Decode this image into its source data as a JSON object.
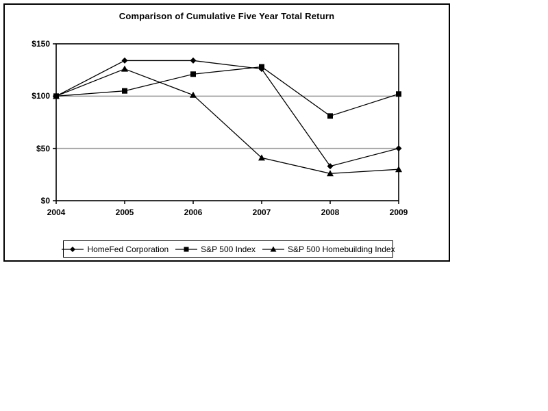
{
  "figure": {
    "title": "Comparison of Cumulative Five Year Total Return"
  },
  "chart_data": {
    "type": "line",
    "title": "Comparison of Cumulative Five Year Total Return",
    "categories": [
      "2004",
      "2005",
      "2006",
      "2007",
      "2008",
      "2009"
    ],
    "series": [
      {
        "name": "HomeFed Corporation",
        "marker": "diamond",
        "values": [
          100,
          134,
          134,
          126,
          33,
          50
        ]
      },
      {
        "name": "S&P 500 Index",
        "marker": "square",
        "values": [
          100,
          105,
          121,
          128,
          81,
          102
        ]
      },
      {
        "name": "S&P 500 Homebuilding Index",
        "marker": "triangle",
        "values": [
          100,
          126,
          101,
          41,
          26,
          30
        ]
      }
    ],
    "ylim": [
      0,
      150
    ],
    "yticks": [
      {
        "value": 150,
        "label": "$150"
      },
      {
        "value": 100,
        "label": "$100"
      },
      {
        "value": 50,
        "label": "$50"
      },
      {
        "value": 0,
        "label": "$0"
      }
    ],
    "gridline_values": [
      50,
      100
    ],
    "grid_on": true,
    "legend_position": "bottom",
    "colors": {
      "line": "#000000",
      "marker": "#000000",
      "gridline": "#999999",
      "frame": "#000000",
      "background": "#ffffff"
    }
  }
}
